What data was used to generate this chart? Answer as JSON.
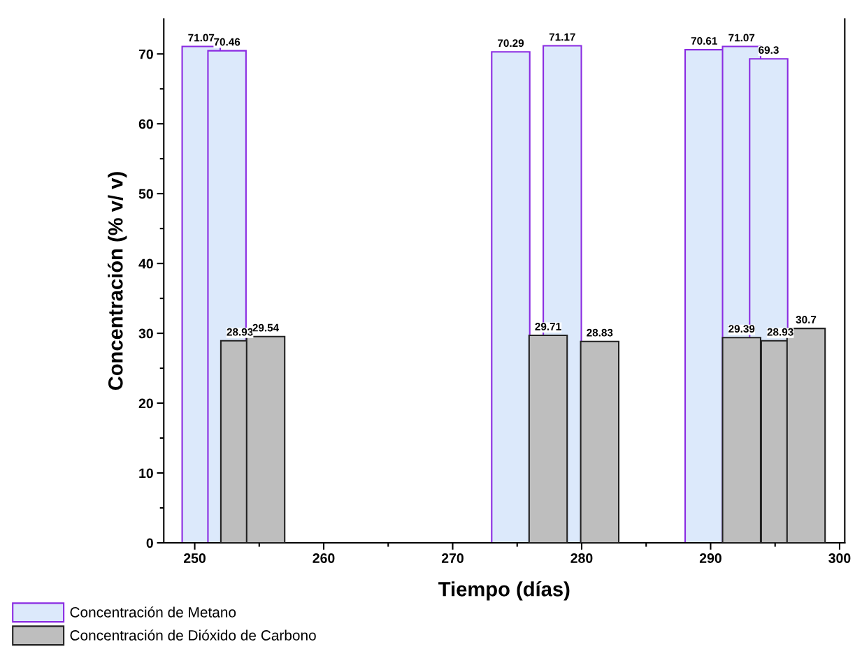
{
  "chart_data": {
    "type": "bar",
    "xlabel": "Tiempo (días)",
    "ylabel": "Concentración (% v/ v)",
    "series": [
      {
        "name": "Concentración de Metano",
        "color": "#dce9fb",
        "x": [
          250.5,
          252.5,
          274.5,
          278.5,
          289.5,
          292.4,
          294.5
        ],
        "values": [
          71.07,
          70.46,
          70.29,
          71.17,
          70.61,
          71.07,
          69.3
        ]
      },
      {
        "name": "Concentración de Dióxido de Carbono",
        "color": "#bebebe",
        "x": [
          253.5,
          255.5,
          277.4,
          281.4,
          292.4,
          295.4,
          297.4
        ],
        "values": [
          28.93,
          29.54,
          29.71,
          28.83,
          29.39,
          28.93,
          30.7
        ]
      }
    ],
    "data_labels": true,
    "xlim": [
      247.6,
      300.4
    ],
    "xticks": [
      250,
      {
        "value": 255,
        "label": null
      },
      260,
      {
        "value": 265,
        "label": null
      },
      270,
      {
        "value": 275,
        "label": null
      },
      280,
      {
        "value": 285,
        "label": null
      },
      290,
      {
        "value": 295,
        "label": null
      },
      300
    ],
    "ylim": [
      0,
      75
    ],
    "yticks": [
      0,
      {
        "value": 5,
        "label": null
      },
      10,
      {
        "value": 15,
        "label": null
      },
      20,
      {
        "value": 25,
        "label": null
      },
      30,
      {
        "value": 35,
        "label": null
      },
      40,
      {
        "value": 45,
        "label": null
      },
      50,
      {
        "value": 55,
        "label": null
      },
      60,
      {
        "value": 65,
        "label": null
      },
      70
    ],
    "grid": false,
    "legend": "bottom left"
  }
}
